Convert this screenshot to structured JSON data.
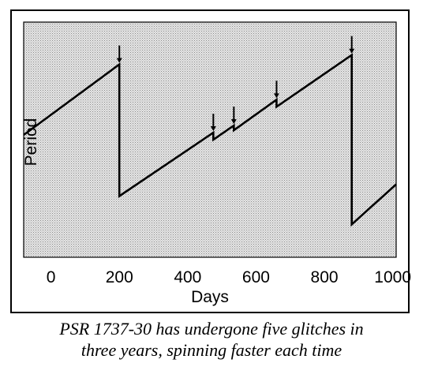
{
  "chart_data": {
    "type": "line",
    "title": "",
    "xlabel": "Days",
    "ylabel": "Period",
    "xlim": [
      -80,
      1010
    ],
    "ylim": [
      0,
      100
    ],
    "xticks": [
      0,
      200,
      400,
      600,
      800,
      1000
    ],
    "xtick_labels": [
      "0",
      "200",
      "400",
      "600",
      "800",
      "1000"
    ],
    "y_tick_labels_shown": false,
    "grid": false,
    "series": [
      {
        "values": [
          {
            "x": -80,
            "y": 52
          },
          {
            "x": 200,
            "y": 82
          },
          {
            "x": 200,
            "y": 26
          },
          {
            "x": 475,
            "y": 53
          },
          {
            "x": 475,
            "y": 50
          },
          {
            "x": 535,
            "y": 56
          },
          {
            "x": 535,
            "y": 54
          },
          {
            "x": 660,
            "y": 67
          },
          {
            "x": 660,
            "y": 64
          },
          {
            "x": 880,
            "y": 86
          },
          {
            "x": 880,
            "y": 14
          },
          {
            "x": 1010,
            "y": 31
          }
        ]
      }
    ],
    "glitches": [
      {
        "x": 200,
        "y": 82
      },
      {
        "x": 475,
        "y": 53
      },
      {
        "x": 535,
        "y": 56
      },
      {
        "x": 660,
        "y": 67
      },
      {
        "x": 880,
        "y": 86
      }
    ]
  },
  "caption": {
    "line1": "PSR 1737-30 has undergone five glitches in",
    "line2": "three years, spinning faster each time"
  }
}
